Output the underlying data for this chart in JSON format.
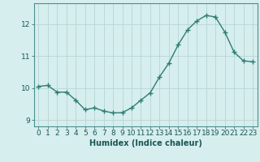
{
  "x": [
    0,
    1,
    2,
    3,
    4,
    5,
    6,
    7,
    8,
    9,
    10,
    11,
    12,
    13,
    14,
    15,
    16,
    17,
    18,
    19,
    20,
    21,
    22,
    23
  ],
  "y": [
    10.05,
    10.08,
    9.87,
    9.87,
    9.62,
    9.32,
    9.38,
    9.28,
    9.22,
    9.23,
    9.38,
    9.62,
    9.85,
    10.35,
    10.78,
    11.35,
    11.82,
    12.1,
    12.27,
    12.22,
    11.75,
    11.12,
    10.85,
    10.82
  ],
  "xlabel": "Humidex (Indice chaleur)",
  "line_color": "#2e7d72",
  "marker": "+",
  "marker_size": 4.0,
  "line_width": 1.0,
  "bg_color": "#d6eeee",
  "grid_color": "#b8d4d4",
  "ylim": [
    8.8,
    12.65
  ],
  "xlim": [
    -0.5,
    23.5
  ],
  "yticks": [
    9,
    10,
    11,
    12
  ],
  "xticks": [
    0,
    1,
    2,
    3,
    4,
    5,
    6,
    7,
    8,
    9,
    10,
    11,
    12,
    13,
    14,
    15,
    16,
    17,
    18,
    19,
    20,
    21,
    22,
    23
  ],
  "tick_fontsize": 6.5,
  "xlabel_fontsize": 7.0
}
